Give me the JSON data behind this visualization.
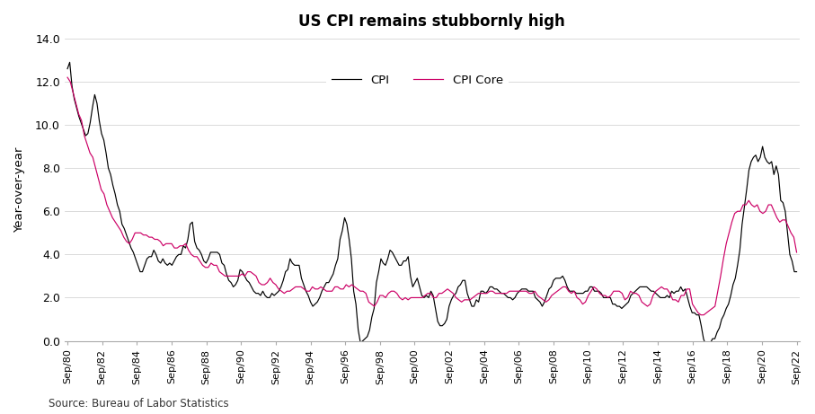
{
  "title": "US CPI remains stubbornly high",
  "ylabel": "Year-over-year",
  "source": "Source: Bureau of Labor Statistics",
  "ylim": [
    0.0,
    14.0
  ],
  "yticks": [
    0.0,
    2.0,
    4.0,
    6.0,
    8.0,
    10.0,
    12.0,
    14.0
  ],
  "cpi_color": "#000000",
  "core_color": "#cc0066",
  "legend_labels": [
    "CPI",
    "CPI Core"
  ],
  "xtick_labels": [
    "Sep/80",
    "Sep/82",
    "Sep/84",
    "Sep/86",
    "Sep/88",
    "Sep/90",
    "Sep/92",
    "Sep/94",
    "Sep/96",
    "Sep/98",
    "Sep/00",
    "Sep/02",
    "Sep/04",
    "Sep/06",
    "Sep/08",
    "Sep/10",
    "Sep/12",
    "Sep/14",
    "Sep/16",
    "Sep/18",
    "Sep/20",
    "Sep/22"
  ],
  "cpi_data": [
    12.6,
    12.9,
    11.8,
    11.2,
    10.8,
    10.4,
    10.1,
    9.8,
    9.5,
    9.6,
    10.1,
    10.8,
    11.4,
    11.0,
    10.2,
    9.6,
    9.3,
    8.7,
    8.0,
    7.7,
    7.2,
    6.8,
    6.3,
    6.0,
    5.4,
    5.2,
    4.9,
    4.6,
    4.3,
    4.1,
    3.8,
    3.5,
    3.2,
    3.2,
    3.5,
    3.8,
    3.9,
    3.9,
    4.2,
    4.0,
    3.7,
    3.6,
    3.8,
    3.6,
    3.5,
    3.6,
    3.5,
    3.7,
    3.9,
    4.0,
    4.0,
    4.4,
    4.3,
    4.7,
    5.4,
    5.5,
    4.6,
    4.3,
    4.2,
    4.0,
    3.7,
    3.6,
    3.8,
    4.1,
    4.1,
    4.1,
    4.1,
    4.0,
    3.6,
    3.5,
    3.1,
    2.8,
    2.7,
    2.5,
    2.6,
    2.8,
    3.3,
    3.2,
    3.0,
    2.8,
    2.7,
    2.5,
    2.3,
    2.2,
    2.2,
    2.1,
    2.3,
    2.1,
    2.0,
    2.0,
    2.2,
    2.1,
    2.2,
    2.3,
    2.5,
    2.8,
    3.2,
    3.3,
    3.8,
    3.6,
    3.5,
    3.5,
    3.5,
    2.9,
    2.6,
    2.3,
    2.1,
    1.8,
    1.6,
    1.7,
    1.8,
    2.0,
    2.3,
    2.5,
    2.7,
    2.7,
    2.9,
    3.1,
    3.5,
    3.8,
    4.7,
    5.1,
    5.7,
    5.4,
    4.7,
    3.8,
    2.3,
    1.7,
    0.5,
    -0.1,
    0.0,
    0.1,
    0.2,
    0.5,
    1.1,
    1.5,
    2.7,
    3.2,
    3.8,
    3.6,
    3.5,
    3.8,
    4.2,
    4.1,
    3.9,
    3.7,
    3.5,
    3.5,
    3.7,
    3.7,
    3.9,
    3.0,
    2.5,
    2.7,
    2.9,
    2.5,
    2.1,
    2.0,
    2.1,
    2.0,
    2.3,
    2.1,
    1.5,
    0.9,
    0.7,
    0.7,
    0.8,
    1.0,
    1.6,
    1.9,
    2.1,
    2.2,
    2.5,
    2.6,
    2.8,
    2.8,
    2.2,
    1.9,
    1.6,
    1.6,
    1.9,
    1.8,
    2.3,
    2.3,
    2.2,
    2.3,
    2.5,
    2.5,
    2.4,
    2.4,
    2.3,
    2.2,
    2.2,
    2.1,
    2.0,
    2.0,
    1.9,
    2.0,
    2.2,
    2.3,
    2.4,
    2.4,
    2.4,
    2.3,
    2.3,
    2.3,
    2.0,
    1.9,
    1.8,
    1.6,
    1.8,
    2.1,
    2.4,
    2.5,
    2.8,
    2.9,
    2.9,
    2.9,
    3.0,
    2.8,
    2.5,
    2.3,
    2.3,
    2.3,
    2.2,
    2.2,
    2.2,
    2.2,
    2.3,
    2.3,
    2.5,
    2.5,
    2.3,
    2.3,
    2.3,
    2.2,
    2.0,
    2.0,
    2.0,
    2.0,
    1.7,
    1.7,
    1.6,
    1.6,
    1.5,
    1.6,
    1.7,
    1.8,
    2.1,
    2.2,
    2.3,
    2.4,
    2.5,
    2.5,
    2.5,
    2.5,
    2.4,
    2.3,
    2.3,
    2.2,
    2.1,
    2.0,
    2.0,
    2.0,
    2.1,
    2.0,
    2.3,
    2.2,
    2.3,
    2.3,
    2.5,
    2.3,
    2.4,
    2.0,
    1.6,
    1.3,
    1.3,
    1.2,
    1.2,
    0.7,
    0.1,
    -0.2,
    -0.2,
    -0.1,
    0.1,
    0.1,
    0.4,
    0.6,
    1.0,
    1.2,
    1.5,
    1.7,
    2.1,
    2.6,
    2.9,
    3.5,
    4.2,
    5.4,
    6.2,
    7.0,
    7.9,
    8.3,
    8.5,
    8.6,
    8.3,
    8.5,
    9.0,
    8.5,
    8.3,
    8.2,
    8.3,
    7.7,
    8.1,
    7.7,
    6.5,
    6.4,
    6.0,
    5.0,
    4.0,
    3.7,
    3.2,
    3.2
  ],
  "core_cpi_data": [
    12.2,
    12.0,
    11.5,
    11.0,
    10.5,
    10.2,
    9.5,
    9.1,
    8.7,
    8.5,
    8.0,
    7.5,
    7.0,
    6.8,
    6.3,
    6.0,
    5.7,
    5.5,
    5.3,
    5.1,
    4.8,
    4.6,
    4.5,
    4.7,
    5.0,
    5.0,
    5.0,
    4.9,
    4.9,
    4.8,
    4.8,
    4.7,
    4.7,
    4.6,
    4.4,
    4.5,
    4.5,
    4.5,
    4.3,
    4.3,
    4.4,
    4.4,
    4.5,
    4.2,
    4.0,
    3.9,
    3.9,
    3.7,
    3.5,
    3.4,
    3.4,
    3.6,
    3.5,
    3.5,
    3.2,
    3.1,
    3.0,
    3.0,
    3.0,
    3.0,
    3.0,
    3.0,
    3.1,
    3.0,
    3.2,
    3.2,
    3.1,
    3.0,
    2.7,
    2.6,
    2.6,
    2.7,
    2.9,
    2.7,
    2.6,
    2.4,
    2.3,
    2.2,
    2.3,
    2.3,
    2.4,
    2.5,
    2.5,
    2.5,
    2.4,
    2.3,
    2.3,
    2.5,
    2.4,
    2.4,
    2.5,
    2.4,
    2.3,
    2.3,
    2.3,
    2.5,
    2.5,
    2.4,
    2.4,
    2.6,
    2.5,
    2.6,
    2.5,
    2.4,
    2.3,
    2.3,
    2.2,
    1.8,
    1.7,
    1.6,
    1.8,
    2.1,
    2.1,
    2.0,
    2.2,
    2.3,
    2.3,
    2.2,
    2.0,
    1.9,
    2.0,
    1.9,
    2.0,
    2.0,
    2.0,
    2.0,
    2.0,
    2.1,
    2.2,
    2.2,
    2.0,
    2.0,
    2.2,
    2.2,
    2.3,
    2.4,
    2.3,
    2.2,
    2.0,
    1.9,
    1.8,
    1.9,
    1.9,
    1.9,
    2.0,
    2.1,
    2.2,
    2.2,
    2.2,
    2.2,
    2.3,
    2.3,
    2.2,
    2.2,
    2.2,
    2.2,
    2.2,
    2.3,
    2.3,
    2.3,
    2.3,
    2.3,
    2.3,
    2.3,
    2.2,
    2.2,
    2.3,
    2.1,
    2.0,
    1.9,
    1.8,
    1.9,
    2.1,
    2.2,
    2.3,
    2.4,
    2.5,
    2.5,
    2.3,
    2.2,
    2.3,
    2.0,
    1.9,
    1.7,
    1.8,
    2.1,
    2.3,
    2.5,
    2.4,
    2.2,
    2.1,
    2.1,
    2.0,
    2.1,
    2.3,
    2.3,
    2.3,
    2.2,
    1.9,
    2.0,
    2.3,
    2.2,
    2.2,
    2.1,
    1.8,
    1.7,
    1.6,
    1.7,
    2.1,
    2.3,
    2.4,
    2.5,
    2.4,
    2.4,
    2.2,
    1.9,
    1.9,
    1.8,
    2.1,
    2.1,
    2.4,
    2.4,
    1.7,
    1.5,
    1.3,
    1.2,
    1.2,
    1.3,
    1.4,
    1.5,
    1.6,
    2.3,
    3.0,
    3.8,
    4.5,
    5.0,
    5.5,
    5.9,
    6.0,
    6.0,
    6.3,
    6.3,
    6.5,
    6.3,
    6.2,
    6.3,
    6.0,
    5.9,
    6.0,
    6.3,
    6.3,
    6.0,
    5.7,
    5.5,
    5.6,
    5.6,
    5.3,
    5.0,
    4.8,
    4.1
  ]
}
